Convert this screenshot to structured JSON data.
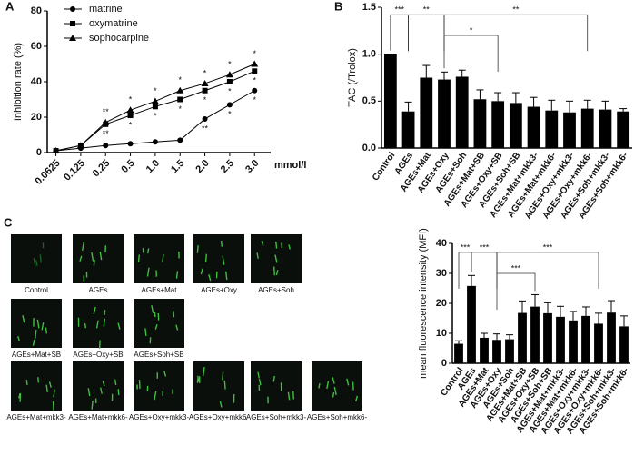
{
  "chart_data": [
    {
      "type": "line",
      "panel": "A",
      "y_label": "Inhibition rate (%)",
      "x_unit": "mmol/l",
      "categories": [
        "0.0625",
        "0.125",
        "0.25",
        "0.5",
        "1.0",
        "1.5",
        "2.0",
        "2.5",
        "3.0"
      ],
      "ylim": [
        0,
        80
      ],
      "yticks": [
        0,
        20,
        40,
        60,
        80
      ],
      "legend": "top-left",
      "series": [
        {
          "name": "matrine",
          "color": "#000000",
          "marker": "circle",
          "values": [
            1,
            2.5,
            4,
            5,
            6,
            7,
            19,
            27,
            35
          ],
          "significance": [
            null,
            null,
            null,
            null,
            null,
            null,
            "**",
            "*",
            "*"
          ]
        },
        {
          "name": "oxymatrine",
          "color": "#000000",
          "marker": "square",
          "values": [
            1,
            4,
            16,
            21,
            26,
            30,
            35,
            40,
            46
          ],
          "significance": [
            null,
            null,
            "**",
            "*",
            "*",
            "*",
            "*",
            "*",
            "*"
          ]
        },
        {
          "name": "sophocarpine",
          "color": "#000000",
          "marker": "triangle",
          "values": [
            1,
            4,
            17,
            24,
            29,
            35,
            39,
            44,
            50
          ],
          "significance": [
            null,
            null,
            "**",
            "*",
            "*",
            "*",
            "*",
            "*",
            "*"
          ]
        }
      ]
    },
    {
      "type": "bar",
      "panel": "B",
      "y_label": "TAC (/Trolox)",
      "color": "#000000",
      "categories": [
        "Control",
        "AGEs",
        "AGEs+Mat",
        "AGEs+Oxy",
        "AGEs+Soh",
        "AGEs+Mat+SB",
        "AGEs+Oxy+SB",
        "AGEs+Soh+SB",
        "AGEs+Mat+mkk3-",
        "AGEs+Mat+mkk6-",
        "AGEs+Oxy+mkk3-",
        "AGEs+Oxy+mkk6-",
        "AGEs+Soh+mkk3-",
        "AGEs+Soh+mkk6-"
      ],
      "values": [
        1.0,
        0.39,
        0.75,
        0.73,
        0.76,
        0.52,
        0.5,
        0.48,
        0.44,
        0.4,
        0.38,
        0.42,
        0.41,
        0.39
      ],
      "errors": [
        0.0,
        0.1,
        0.13,
        0.08,
        0.07,
        0.1,
        0.09,
        0.11,
        0.1,
        0.11,
        0.12,
        0.09,
        0.09,
        0.03
      ],
      "ylim": [
        0,
        1.5
      ],
      "yticks": [
        {
          "value": 0,
          "label": "0.0"
        },
        {
          "value": 0.5,
          "label": "0.5"
        },
        {
          "value": 1,
          "label": "1.0"
        },
        {
          "value": 1.5,
          "label": "1.5"
        }
      ],
      "brackets": [
        "***",
        "**",
        "*",
        "**"
      ]
    },
    {
      "type": "bar",
      "panel": null,
      "y_label": "mean fluorescence intensity (MFI)",
      "color": "#000000",
      "categories": [
        "Control",
        "AGEs",
        "AGEs+Mat",
        "AGEs+Oxy",
        "AGEs+Soh",
        "AGEs+Mat+SB",
        "AGEs+Oxy+SB",
        "AGEs+Soh+SB",
        "AGEs+Mat+mkk3-",
        "AGEs+Mat+mkk6-",
        "AGEs+Oxy+mkk3-",
        "AGEs+Oxy+mkk6-",
        "AGEs+Soh+mkk3-",
        "AGEs+Soh+mkk6-"
      ],
      "values": [
        6.5,
        25.8,
        8.5,
        7.8,
        8.0,
        16.8,
        18.9,
        16.7,
        15.5,
        14.3,
        15.8,
        13.2,
        16.9,
        12.3
      ],
      "errors": [
        1.0,
        3.5,
        1.5,
        2.0,
        1.5,
        4.0,
        4.0,
        3.5,
        3.5,
        3.0,
        3.0,
        3.5,
        4.0,
        3.5
      ],
      "ylim": [
        0,
        40
      ],
      "yticks": [
        0,
        10,
        20,
        30,
        40
      ],
      "brackets": [
        "***",
        "***",
        "***",
        "***"
      ]
    }
  ],
  "micrographs": {
    "panel": "C",
    "captions": [
      [
        "Control",
        "AGEs",
        "AGEs+Mat",
        "AGEs+Oxy",
        "AGEs+Soh"
      ],
      [
        "AGEs+Mat+SB",
        "AGEs+Oxy+SB",
        "AGEs+Soh+SB"
      ],
      [
        "AGEs+Mat+mkk3-",
        "AGEs+Mat+mkk6-",
        "AGEs+Oxy+mkk3-",
        "AGEs+Oxy+mkk6-",
        "AGEs+Soh+mkk3-",
        "AGEs+Soh+mkk6-"
      ]
    ]
  }
}
